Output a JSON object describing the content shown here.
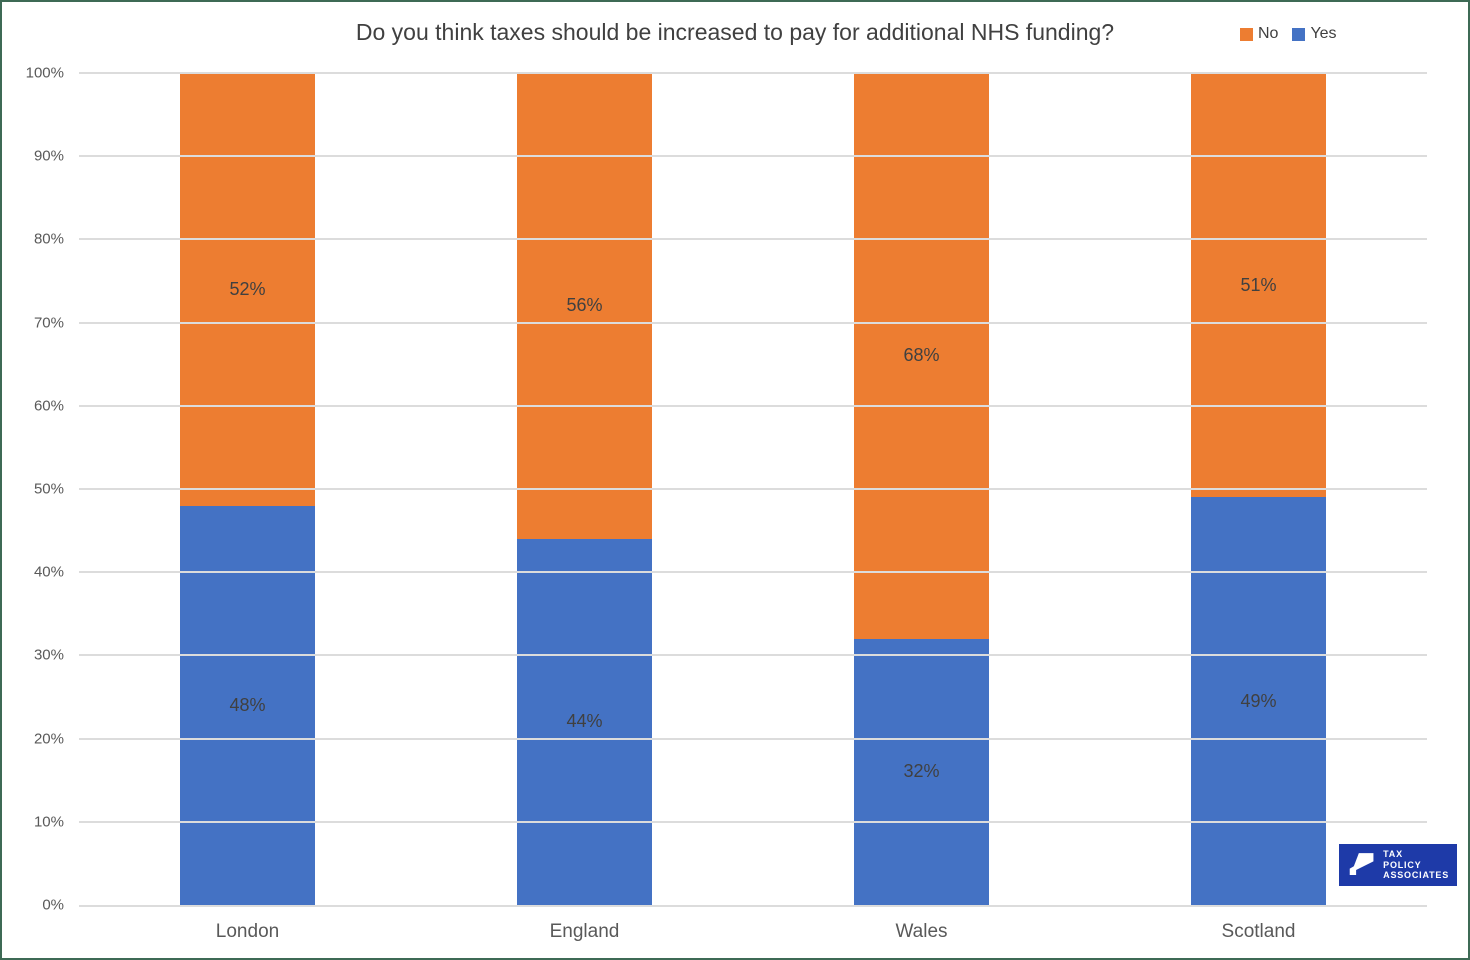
{
  "frame": {
    "border_color": "#3E6A55",
    "background": "#FFFFFF"
  },
  "chart_data": {
    "type": "bar",
    "stacked": true,
    "title": "Do you think taxes should be increased to pay for additional NHS funding?",
    "categories": [
      "London",
      "England",
      "Wales",
      "Scotland"
    ],
    "series": [
      {
        "name": "Yes",
        "color": "#4472C4",
        "values": [
          48,
          44,
          32,
          49
        ]
      },
      {
        "name": "No",
        "color": "#ED7D31",
        "values": [
          52,
          56,
          68,
          51
        ]
      }
    ],
    "legend_items": [
      {
        "label": "No",
        "color": "#ED7D31"
      },
      {
        "label": "Yes",
        "color": "#4472C4"
      }
    ],
    "legend_position": "top-right",
    "xlabel": "",
    "ylabel": "",
    "ylim": [
      0,
      100
    ],
    "ytick_step": 10,
    "ytick_labels": [
      "0%",
      "10%",
      "20%",
      "30%",
      "40%",
      "50%",
      "60%",
      "70%",
      "80%",
      "90%",
      "100%"
    ],
    "grid": true,
    "gridline_color": "#DCDCDC",
    "data_label_suffix": "%",
    "data_label_color": "#404040"
  },
  "logo": {
    "lines": [
      "TAX",
      "POLICY",
      "ASSOCIATES"
    ],
    "background": "#1E3AA8",
    "text_color": "#FFFFFF"
  }
}
